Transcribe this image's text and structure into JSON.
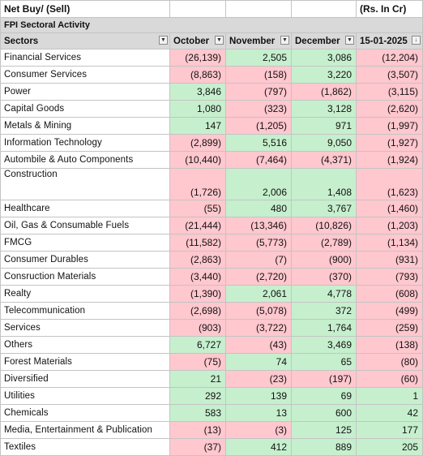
{
  "title_row": {
    "left": "Net Buy/ (Sell)",
    "right": "(Rs. In Cr)"
  },
  "subtitle": "FPI Sectoral Activity",
  "headers": [
    "Sectors",
    "October",
    "November",
    "December",
    "15-01-2025"
  ],
  "rows": [
    {
      "sector": "Financial  Services",
      "values": [
        "(26,139)",
        "2,505",
        "3,086",
        "(12,204)"
      ],
      "signs": [
        "neg",
        "pos",
        "pos",
        "neg"
      ]
    },
    {
      "sector": "Consumer Services",
      "values": [
        "(8,863)",
        "(158)",
        "3,220",
        "(3,507)"
      ],
      "signs": [
        "neg",
        "neg",
        "pos",
        "neg"
      ]
    },
    {
      "sector": "Power",
      "values": [
        "3,846",
        "(797)",
        "(1,862)",
        "(3,115)"
      ],
      "signs": [
        "pos",
        "neg",
        "neg",
        "neg"
      ]
    },
    {
      "sector": "Capital Goods",
      "values": [
        "1,080",
        "(323)",
        "3,128",
        "(2,620)"
      ],
      "signs": [
        "pos",
        "neg",
        "pos",
        "neg"
      ]
    },
    {
      "sector": "Metals & Mining",
      "values": [
        "147",
        "(1,205)",
        "971",
        "(1,997)"
      ],
      "signs": [
        "pos",
        "neg",
        "pos",
        "neg"
      ]
    },
    {
      "sector": "Information Technology",
      "values": [
        "(2,899)",
        "5,516",
        "9,050",
        "(1,927)"
      ],
      "signs": [
        "neg",
        "pos",
        "pos",
        "neg"
      ]
    },
    {
      "sector": "Autombile & Auto Components",
      "values": [
        "(10,440)",
        "(7,464)",
        "(4,371)",
        "(1,924)"
      ],
      "signs": [
        "neg",
        "neg",
        "neg",
        "neg"
      ]
    },
    {
      "sector": "Construction",
      "values": [
        "(1,726)",
        "2,006",
        "1,408",
        "(1,623)"
      ],
      "signs": [
        "neg",
        "pos",
        "pos",
        "neg"
      ],
      "tall": true
    },
    {
      "sector": "Healthcare",
      "values": [
        "(55)",
        "480",
        "3,767",
        "(1,460)"
      ],
      "signs": [
        "neg",
        "pos",
        "pos",
        "neg"
      ]
    },
    {
      "sector": "Oil, Gas & Consumable Fuels",
      "values": [
        "(21,444)",
        "(13,346)",
        "(10,826)",
        "(1,203)"
      ],
      "signs": [
        "neg",
        "neg",
        "neg",
        "neg"
      ]
    },
    {
      "sector": "FMCG",
      "values": [
        "(11,582)",
        "(5,773)",
        "(2,789)",
        "(1,134)"
      ],
      "signs": [
        "neg",
        "neg",
        "neg",
        "neg"
      ]
    },
    {
      "sector": "Consumer Durables",
      "values": [
        "(2,863)",
        "(7)",
        "(900)",
        "(931)"
      ],
      "signs": [
        "neg",
        "neg",
        "neg",
        "neg"
      ]
    },
    {
      "sector": "Consruction Materials",
      "values": [
        "(3,440)",
        "(2,720)",
        "(370)",
        "(793)"
      ],
      "signs": [
        "neg",
        "neg",
        "neg",
        "neg"
      ]
    },
    {
      "sector": "Realty",
      "values": [
        "(1,390)",
        "2,061",
        "4,778",
        "(608)"
      ],
      "signs": [
        "neg",
        "pos",
        "pos",
        "neg"
      ]
    },
    {
      "sector": "Telecommunication",
      "values": [
        "(2,698)",
        "(5,078)",
        "372",
        "(499)"
      ],
      "signs": [
        "neg",
        "neg",
        "pos",
        "neg"
      ]
    },
    {
      "sector": "Services",
      "values": [
        "(903)",
        "(3,722)",
        "1,764",
        "(259)"
      ],
      "signs": [
        "neg",
        "neg",
        "pos",
        "neg"
      ]
    },
    {
      "sector": "Others",
      "values": [
        "6,727",
        "(43)",
        "3,469",
        "(138)"
      ],
      "signs": [
        "pos",
        "neg",
        "pos",
        "neg"
      ]
    },
    {
      "sector": "Forest Materials",
      "values": [
        "(75)",
        "74",
        "65",
        "(80)"
      ],
      "signs": [
        "neg",
        "pos",
        "pos",
        "neg"
      ]
    },
    {
      "sector": "Diversified",
      "values": [
        "21",
        "(23)",
        "(197)",
        "(60)"
      ],
      "signs": [
        "pos",
        "neg",
        "neg",
        "neg"
      ]
    },
    {
      "sector": "Utilities",
      "values": [
        "292",
        "139",
        "69",
        "1"
      ],
      "signs": [
        "pos",
        "pos",
        "pos",
        "pos"
      ]
    },
    {
      "sector": "Chemicals",
      "values": [
        "583",
        "13",
        "600",
        "42"
      ],
      "signs": [
        "pos",
        "pos",
        "pos",
        "pos"
      ]
    },
    {
      "sector": "Media, Entertainment & Publication",
      "values": [
        "(13)",
        "(3)",
        "125",
        "177"
      ],
      "signs": [
        "neg",
        "neg",
        "pos",
        "pos"
      ]
    },
    {
      "sector": "Textiles",
      "values": [
        "(37)",
        "412",
        "889",
        "205"
      ],
      "signs": [
        "neg",
        "pos",
        "pos",
        "pos"
      ]
    }
  ],
  "filter_icons": [
    "chevron-down-icon",
    "chevron-down-icon",
    "chevron-down-icon",
    "chevron-down-icon",
    "sort-descending-filter-icon"
  ],
  "colors": {
    "positive_fill": "#c6efce",
    "negative_fill": "#ffc7ce",
    "header_fill": "#d9d9d9"
  }
}
